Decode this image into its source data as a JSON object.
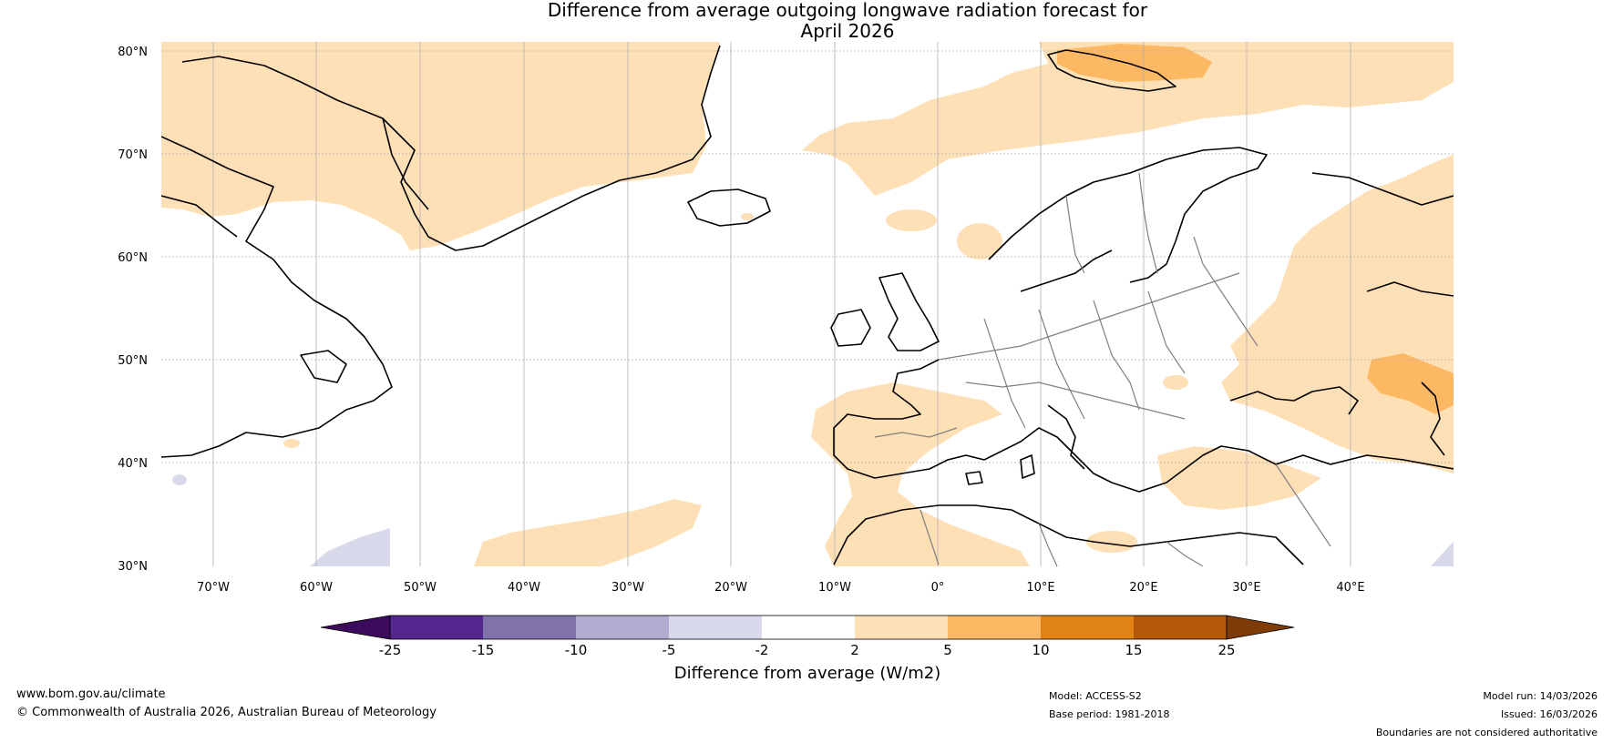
{
  "title_line1": "Difference from average outgoing longwave radiation forecast for",
  "title_line2": "April 2026",
  "lat_labels": [
    "80°N",
    "70°N",
    "60°N",
    "50°N",
    "40°N",
    "30°N"
  ],
  "lon_labels": [
    "70°W",
    "60°W",
    "50°W",
    "40°W",
    "30°W",
    "20°W",
    "10°W",
    "0°",
    "10°E",
    "20°E",
    "30°E",
    "40°E"
  ],
  "colorbar": {
    "ticks": [
      "-25",
      "-15",
      "-10",
      "-5",
      "-2",
      "2",
      "5",
      "10",
      "15",
      "25"
    ],
    "title": "Difference from average (W/m2)",
    "colors": [
      "#3d0b5c",
      "#54278f",
      "#8073ac",
      "#b2abd2",
      "#d8daeb",
      "#ffffff",
      "#fee0b6",
      "#fdb863",
      "#e08214",
      "#b35806",
      "#7f3b08"
    ]
  },
  "footer": {
    "website": "www.bom.gov.au/climate",
    "copyright": "© Commonwealth of Australia 2026, Australian Bureau of Meteorology",
    "model": "Model: ACCESS-S2",
    "base_period": "Base period: 1981-2018",
    "model_run": "Model run: 14/03/2026",
    "issued": "Issued: 16/03/2026",
    "disclaimer": "Boundaries are not considered authoritative"
  },
  "colors": {
    "positive_light": "#fee0b6",
    "positive_medium": "#fdb863",
    "negative_light": "#d8daeb",
    "coast": "#000000",
    "border": "#808080"
  }
}
